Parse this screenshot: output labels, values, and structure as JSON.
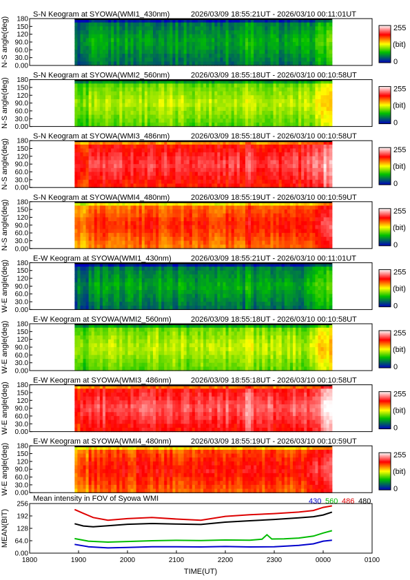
{
  "panels": [
    {
      "title": "S-N Keogram at SYOWA(WMI1_430nm)",
      "time_range": "2026/03/09 18:55:21UT - 2026/03/10 00:11:01UT",
      "ylabel": "N-S angle(deg)",
      "channel": "430",
      "mean_level": 0.25
    },
    {
      "title": "S-N Keogram at SYOWA(WMI2_560nm)",
      "time_range": "2026/03/09 18:55:18UT - 2026/03/10 00:10:58UT",
      "ylabel": "N-S angle(deg)",
      "channel": "560",
      "mean_level": 0.45
    },
    {
      "title": "S-N Keogram at SYOWA(WMI3_486nm)",
      "time_range": "2026/03/09 18:55:18UT - 2026/03/10 00:10:58UT",
      "ylabel": "N-S angle(deg)",
      "channel": "486",
      "mean_level": 0.82
    },
    {
      "title": "S-N Keogram at SYOWA(WMI4_480nm)",
      "time_range": "2026/03/09 18:55:19UT - 2026/03/10 00:10:59UT",
      "ylabel": "N-S angle(deg)",
      "channel": "480",
      "mean_level": 0.72
    },
    {
      "title": "E-W Keogram at SYOWA(WMI1_430nm)",
      "time_range": "2026/03/09 18:55:21UT - 2026/03/10 00:11:01UT",
      "ylabel": "W-E angle(deg)",
      "channel": "430",
      "mean_level": 0.25
    },
    {
      "title": "E-W Keogram at SYOWA(WMI2_560nm)",
      "time_range": "2026/03/09 18:55:18UT - 2026/03/10 00:10:58UT",
      "ylabel": "W-E angle(deg)",
      "channel": "560",
      "mean_level": 0.45
    },
    {
      "title": "E-W Keogram at SYOWA(WMI3_486nm)",
      "time_range": "2026/03/09 18:55:18UT - 2026/03/10 00:10:58UT",
      "ylabel": "W-E angle(deg)",
      "channel": "486",
      "mean_level": 0.85
    },
    {
      "title": "E-W Keogram at SYOWA(WMI4_480nm)",
      "time_range": "2026/03/09 18:55:19UT - 2026/03/10 00:10:59UT",
      "ylabel": "W-E angle(deg)",
      "channel": "480",
      "mean_level": 0.75
    }
  ],
  "angle_ticks": [
    "180",
    "150",
    "120",
    "90.0",
    "60.0",
    "30.0",
    "0.00"
  ],
  "colorbar": {
    "max_label": "255",
    "unit_label": "(bit)",
    "min_label": "0",
    "stops": [
      "#0000c0",
      "#00c000",
      "#ffff00",
      "#ff0000",
      "#ffffff"
    ]
  },
  "chart_data": {
    "type": "line",
    "title": "Mean intensity in FOV of Syowa WMI",
    "xlabel": "TIME(UT)",
    "ylabel": "MEAN(BIT)",
    "x_ticks": [
      "1800",
      "1900",
      "2000",
      "2100",
      "2200",
      "2300",
      "0000",
      "0100"
    ],
    "x_tick_hours": [
      18,
      19,
      20,
      21,
      22,
      23,
      24,
      25
    ],
    "y_ticks": [
      "256",
      "192",
      "128",
      "64.0",
      "0.00"
    ],
    "y_tick_values": [
      256,
      192,
      128,
      64,
      0
    ],
    "xlim": [
      18,
      25
    ],
    "ylim": [
      0,
      256
    ],
    "data_start_hour": 18.92,
    "data_end_hour": 24.18,
    "series": [
      {
        "name": "430",
        "color": "#0000cc",
        "x": [
          18.92,
          19.2,
          19.6,
          20.0,
          20.5,
          21.0,
          21.5,
          22.0,
          22.5,
          23.0,
          23.5,
          23.8,
          24.0,
          24.18
        ],
        "y": [
          45,
          33,
          27,
          29,
          33,
          33,
          32,
          34,
          32,
          33,
          40,
          48,
          62,
          67
        ]
      },
      {
        "name": "560",
        "color": "#00bb00",
        "x": [
          18.92,
          19.2,
          19.6,
          20.0,
          20.5,
          21.0,
          21.5,
          22.0,
          22.5,
          22.75,
          22.85,
          22.95,
          23.2,
          23.5,
          23.8,
          24.0,
          24.18
        ],
        "y": [
          75,
          62,
          57,
          60,
          64,
          66,
          65,
          68,
          67,
          72,
          95,
          73,
          74,
          78,
          88,
          104,
          116
        ]
      },
      {
        "name": "486",
        "color": "#dd0000",
        "x": [
          18.92,
          19.1,
          19.3,
          19.6,
          20.0,
          20.5,
          21.0,
          21.5,
          22.0,
          22.5,
          23.0,
          23.5,
          23.8,
          24.0,
          24.18
        ],
        "y": [
          225,
          205,
          184,
          170,
          178,
          184,
          176,
          170,
          190,
          198,
          204,
          212,
          220,
          236,
          244
        ]
      },
      {
        "name": "480",
        "color": "#000000",
        "x": [
          18.92,
          19.1,
          19.3,
          19.6,
          20.0,
          20.5,
          21.0,
          21.5,
          22.0,
          22.5,
          23.0,
          23.5,
          23.8,
          24.0,
          24.18
        ],
        "y": [
          152,
          140,
          136,
          141,
          149,
          153,
          150,
          148,
          160,
          167,
          174,
          182,
          188,
          197,
          212
        ]
      }
    ]
  }
}
